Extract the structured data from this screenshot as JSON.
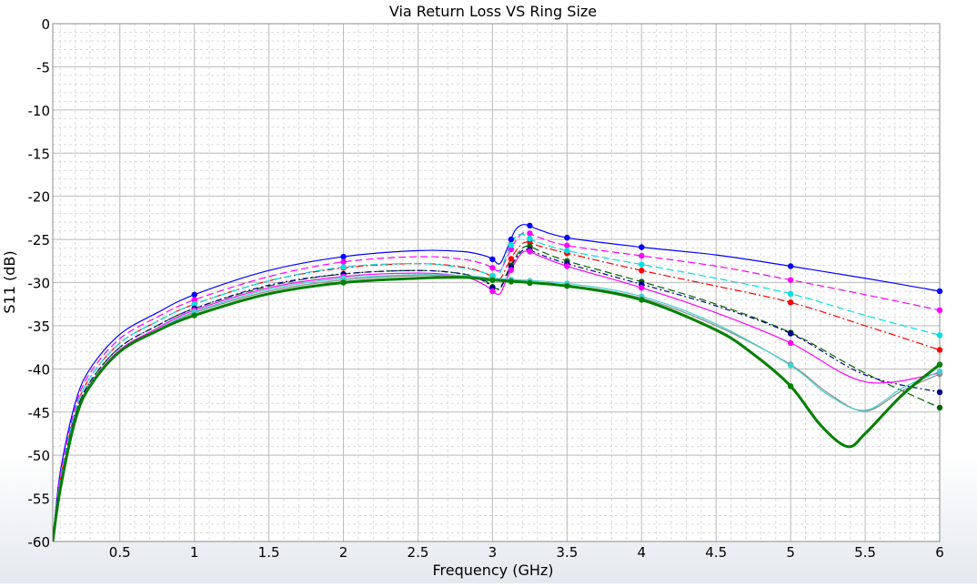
{
  "chart_data": {
    "type": "line",
    "title": "Via Return Loss VS Ring Size",
    "xlabel": "Frequency (GHz)",
    "ylabel": "S11 (dB)",
    "xlim": [
      0.05,
      6
    ],
    "ylim": [
      -60,
      0
    ],
    "xticks": [
      0.5,
      1,
      1.5,
      2,
      2.5,
      3,
      3.5,
      4,
      4.5,
      5,
      5.5,
      6
    ],
    "xtick_labels": [
      "0.5",
      "1",
      "1.5",
      "2",
      "2.5",
      "3",
      "3.5",
      "4",
      "4.5",
      "5",
      "5.5",
      "6"
    ],
    "yticks": [
      0,
      -5,
      -10,
      -15,
      -20,
      -25,
      -30,
      -35,
      -40,
      -45,
      -50,
      -55,
      -60
    ],
    "ytick_labels": [
      "0",
      "-5",
      "-10",
      "-15",
      "-20",
      "-25",
      "-30",
      "-35",
      "-40",
      "-45",
      "-50",
      "-55",
      "-60"
    ],
    "grid": true,
    "legend": "none",
    "series": [
      {
        "color": "#0000ff",
        "dash": "solid",
        "x": [
          0.05,
          0.1,
          0.2,
          0.3,
          0.5,
          0.75,
          1,
          1.5,
          2,
          2.5,
          2.8,
          2.95,
          3.0,
          3.05,
          3.1,
          3.15,
          3.2,
          3.25,
          3.3,
          3.5,
          4,
          4.5,
          5,
          5.5,
          6
        ],
        "y": [
          -60,
          -52,
          -44,
          -40,
          -36,
          -33.5,
          -31.4,
          -28.6,
          -27,
          -26.3,
          -26.4,
          -26.9,
          -27.3,
          -27.8,
          -26,
          -24,
          -23.3,
          -23.4,
          -23.8,
          -24.8,
          -25.9,
          -26.8,
          -28.1,
          -29.5,
          -31
        ]
      },
      {
        "color": "#ff00ff",
        "dash": "8 4",
        "x": [
          0.05,
          0.1,
          0.2,
          0.3,
          0.5,
          0.75,
          1,
          1.5,
          2,
          2.5,
          2.8,
          2.95,
          3.0,
          3.05,
          3.1,
          3.15,
          3.2,
          3.25,
          3.3,
          3.5,
          4,
          4.5,
          5,
          5.5,
          6
        ],
        "y": [
          -60,
          -52.5,
          -44.5,
          -40.5,
          -36.5,
          -34,
          -32,
          -29.3,
          -27.6,
          -27,
          -27.3,
          -27.9,
          -28.3,
          -28.6,
          -27,
          -25.3,
          -24.3,
          -24.3,
          -24.7,
          -25.7,
          -26.9,
          -28.1,
          -29.7,
          -31.4,
          -33.2
        ]
      },
      {
        "color": "#ff0000",
        "dash": "8 3 2 3",
        "x": [
          0.05,
          0.1,
          0.2,
          0.3,
          0.5,
          0.75,
          1,
          1.5,
          2,
          2.5,
          2.8,
          2.95,
          3.0,
          3.05,
          3.1,
          3.15,
          3.2,
          3.25,
          3.3,
          3.5,
          4,
          4.5,
          5,
          5.5,
          6
        ],
        "y": [
          -60,
          -53,
          -45,
          -41,
          -37,
          -34.5,
          -32.5,
          -29.8,
          -28.3,
          -27.8,
          -28.2,
          -28.9,
          -29.4,
          -29.6,
          -28,
          -26.5,
          -25.5,
          -25.3,
          -25.7,
          -26.6,
          -28.6,
          -30.4,
          -32.3,
          -35,
          -37.8
        ]
      },
      {
        "color": "#00e0e0",
        "dash": "8 4",
        "x": [
          0.05,
          0.1,
          0.2,
          0.3,
          0.5,
          0.75,
          1,
          1.5,
          2,
          2.5,
          2.8,
          2.95,
          3.0,
          3.05,
          3.1,
          3.15,
          3.2,
          3.25,
          3.3,
          3.5,
          4,
          4.5,
          5,
          5.5,
          6
        ],
        "y": [
          -60,
          -53,
          -45,
          -41,
          -37,
          -34.5,
          -32.5,
          -29.8,
          -28.2,
          -27.8,
          -28.3,
          -28.9,
          -29.2,
          -28.8,
          -26.5,
          -24.8,
          -24.4,
          -24.9,
          -25.3,
          -26.3,
          -27.9,
          -29.5,
          -31.3,
          -33.8,
          -36.1
        ]
      },
      {
        "color": "#006400",
        "dash": "8 4",
        "x": [
          0.05,
          0.1,
          0.2,
          0.3,
          0.5,
          0.75,
          1,
          1.5,
          2,
          2.5,
          2.8,
          2.95,
          3.0,
          3.05,
          3.1,
          3.15,
          3.2,
          3.25,
          3.3,
          3.5,
          4,
          4.5,
          5,
          5.5,
          6
        ],
        "y": [
          -60,
          -53.5,
          -45.5,
          -41.5,
          -37.5,
          -35,
          -33,
          -30.4,
          -29,
          -28.6,
          -29,
          -29.8,
          -30.5,
          -30.6,
          -28.8,
          -27.2,
          -26,
          -25.8,
          -26.2,
          -27.5,
          -29.9,
          -32.5,
          -35.8,
          -40.5,
          -44.5
        ]
      },
      {
        "color": "#00008b",
        "dash": "6 3 2 3",
        "x": [
          0.05,
          0.1,
          0.2,
          0.3,
          0.5,
          0.75,
          1,
          1.5,
          2,
          2.5,
          2.8,
          2.95,
          3.0,
          3.05,
          3.1,
          3.15,
          3.2,
          3.25,
          3.3,
          3.5,
          4,
          4.5,
          5,
          5.5,
          6
        ],
        "y": [
          -60,
          -53.5,
          -45.5,
          -41.5,
          -37.5,
          -35,
          -33,
          -30.3,
          -29,
          -28.6,
          -29,
          -29.9,
          -30.6,
          -30.7,
          -29,
          -27.4,
          -26.3,
          -26.2,
          -26.6,
          -27.8,
          -30.2,
          -32.7,
          -35.9,
          -40.7,
          -42.7
        ]
      },
      {
        "color": "#ff00ff",
        "dash": "solid",
        "x": [
          0.05,
          0.1,
          0.2,
          0.3,
          0.5,
          0.75,
          1,
          1.5,
          2,
          2.5,
          2.8,
          2.95,
          3.0,
          3.05,
          3.1,
          3.15,
          3.2,
          3.25,
          3.3,
          3.5,
          4,
          4.5,
          5,
          5.5,
          6
        ],
        "y": [
          -60,
          -53.8,
          -45.8,
          -41.8,
          -37.8,
          -35.3,
          -33.2,
          -30.6,
          -29.3,
          -28.9,
          -29.3,
          -30.3,
          -31,
          -31.3,
          -29.4,
          -27.7,
          -26.5,
          -26.4,
          -26.8,
          -28.1,
          -30.6,
          -33.5,
          -37,
          -41.5,
          -40.5
        ]
      },
      {
        "color": "#8b8b8b",
        "dash": "solid",
        "x": [
          0.05,
          0.1,
          0.2,
          0.3,
          0.5,
          0.75,
          1,
          1.5,
          2,
          2.5,
          2.8,
          2.95,
          3.0,
          3.5,
          4,
          4.5,
          5,
          5.25,
          5.5,
          5.75,
          6
        ],
        "y": [
          -60,
          -54,
          -46,
          -42,
          -38,
          -35.5,
          -33.5,
          -31,
          -29.7,
          -29.2,
          -29.3,
          -29.6,
          -29.7,
          -30.3,
          -31.8,
          -35,
          -39.5,
          -42.8,
          -44.9,
          -42.5,
          -40.6
        ]
      },
      {
        "color": "#40d0d0",
        "dash": "solid",
        "x": [
          0.05,
          0.1,
          0.2,
          0.3,
          0.5,
          0.75,
          1,
          1.5,
          2,
          2.5,
          2.8,
          2.95,
          3.0,
          3.5,
          4,
          4.5,
          5,
          5.25,
          5.5,
          5.75,
          6
        ],
        "y": [
          -60,
          -54,
          -46,
          -42,
          -38,
          -35.5,
          -33.4,
          -30.8,
          -29.5,
          -29.1,
          -29.2,
          -29.4,
          -29.5,
          -30.1,
          -31.6,
          -34.8,
          -39.6,
          -43,
          -44.8,
          -42.2,
          -40.3
        ]
      },
      {
        "color": "#008000",
        "dash": "solid",
        "width": 3,
        "x": [
          0.05,
          0.1,
          0.2,
          0.3,
          0.5,
          0.75,
          1,
          1.5,
          2,
          2.5,
          2.8,
          2.95,
          3.0,
          3.5,
          4,
          4.5,
          4.75,
          5,
          5.2,
          5.38,
          5.5,
          5.75,
          6
        ],
        "y": [
          -60,
          -54,
          -46,
          -42,
          -38,
          -35.6,
          -33.8,
          -31.3,
          -30,
          -29.5,
          -29.4,
          -29.6,
          -29.7,
          -30.4,
          -32,
          -35.5,
          -38.3,
          -42,
          -46.5,
          -49,
          -47.5,
          -43,
          -39.5
        ]
      }
    ]
  }
}
